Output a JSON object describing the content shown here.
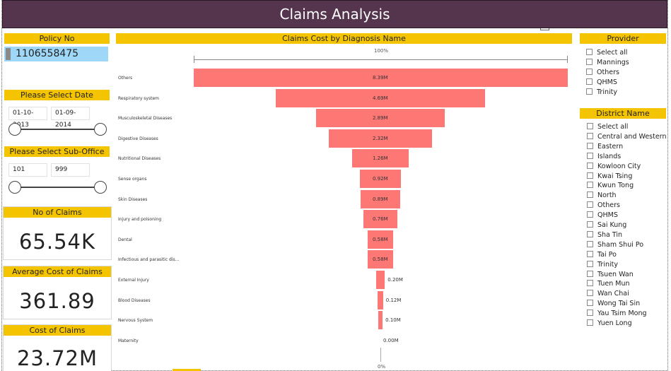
{
  "header": {
    "title": "Claims Analysis"
  },
  "policy": {
    "label": "Policy No",
    "value": "1106558475"
  },
  "date_filter": {
    "label": "Please Select Date",
    "start": "01-10-2013",
    "end": "01-09-2014"
  },
  "suboffice_filter": {
    "label": "Please Select Sub-Office",
    "min": "101",
    "max": "999"
  },
  "kpis": {
    "claims": {
      "label": "No of Claims",
      "value": "65.54K"
    },
    "avg_cost": {
      "label": "Average Cost of Claims",
      "value": "361.89"
    },
    "cost": {
      "label": "Cost of Claims",
      "value": "23.72M"
    }
  },
  "chart": {
    "title": "Claims Cost by Diagnosis Name",
    "top_label": "100%",
    "bottom_label": "0%"
  },
  "chart_data": {
    "type": "bar",
    "title": "Claims Cost by Diagnosis Name",
    "categories": [
      "Others",
      "Respiratory system",
      "Musculoskeletal Diseases",
      "Digestive Diseases",
      "Nutritional Diseases",
      "Sense organs",
      "Skin Diseases",
      "Injury and poisoning",
      "Dental",
      "Infectious and parasitic dis...",
      "External Injury",
      "Blood Diseases",
      "Nervous System",
      "Maternity"
    ],
    "values": [
      8.39,
      4.69,
      2.89,
      2.32,
      1.26,
      0.92,
      0.89,
      0.76,
      0.58,
      0.58,
      0.2,
      0.12,
      0.1,
      0.0
    ],
    "value_labels": [
      "8.39M",
      "4.69M",
      "2.89M",
      "2.32M",
      "1.26M",
      "0.92M",
      "0.89M",
      "0.76M",
      "0.58M",
      "0.58M",
      "0.20M",
      "0.12M",
      "0.10M",
      "0.00M"
    ],
    "bar_color": "#fd7774",
    "style": "funnel"
  },
  "provider": {
    "label": "Provider",
    "items": [
      "Select all",
      "Mannings",
      "Others",
      "QHMS",
      "Trinity"
    ]
  },
  "district": {
    "label": "District Name",
    "items": [
      "Select all",
      "Central and Western",
      "Eastern",
      "Islands",
      "Kowloon City",
      "Kwai Tsing",
      "Kwun Tong",
      "North",
      "Others",
      "QHMS",
      "Sai Kung",
      "Sha Tin",
      "Sham Shui Po",
      "Tai Po",
      "Trinity",
      "Tsuen Wan",
      "Tuen Mun",
      "Wan Chai",
      "Wong Tai Sin",
      "Yau Tsim Mong",
      "Yuen Long"
    ]
  },
  "colors": {
    "header_bg": "#55344d",
    "accent_yellow": "#f5c400",
    "policy_bg": "#9fd7f8",
    "bar": "#fd7774"
  }
}
